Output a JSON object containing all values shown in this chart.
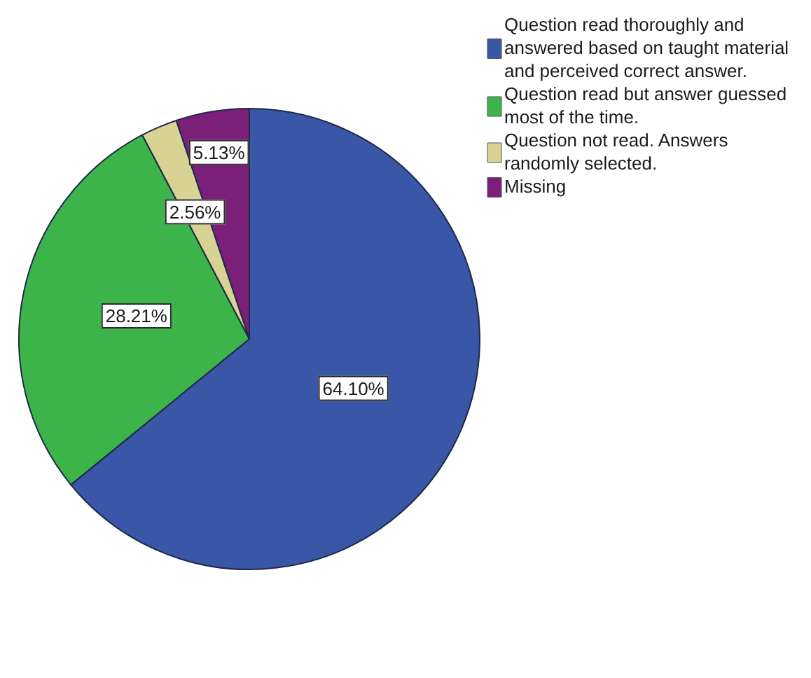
{
  "chart_data": {
    "type": "pie",
    "categories": [
      "Question read thoroughly and answered based on taught material and perceived correct answer.",
      "Question read but answer guessed most of the time.",
      "Question not read. Answers randomly selected.",
      "Missing"
    ],
    "values": [
      64.1,
      28.21,
      2.56,
      5.13
    ],
    "colors": [
      "#3a56a6",
      "#3cb44a",
      "#d8d293",
      "#7c1f78"
    ],
    "value_labels": [
      "64.10%",
      "28.21%",
      "2.56%",
      "5.13%"
    ],
    "legend": "top right"
  }
}
